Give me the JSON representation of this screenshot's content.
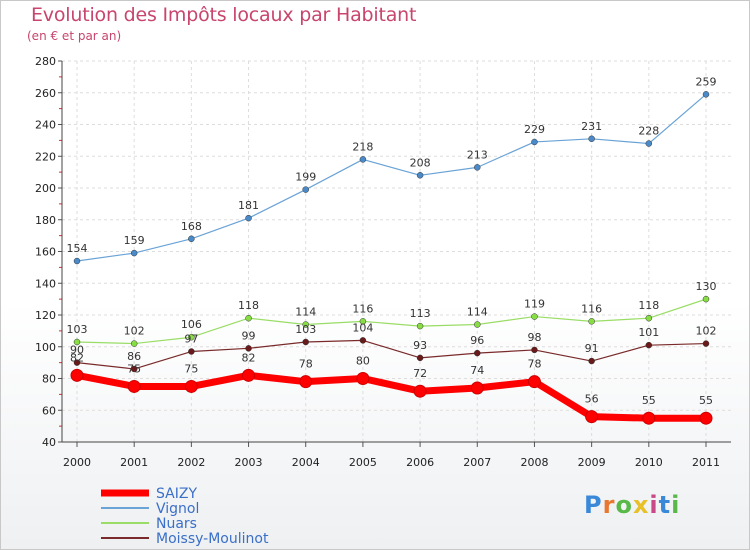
{
  "chart_data": {
    "type": "line",
    "title": "Evolution des Impôts locaux par Habitant",
    "subtitle": "(en € et par an)",
    "x": [
      "2000",
      "2001",
      "2002",
      "2003",
      "2004",
      "2005",
      "2006",
      "2007",
      "2008",
      "2009",
      "2010",
      "2011"
    ],
    "ylim": [
      40,
      280
    ],
    "yticks": [
      40,
      60,
      80,
      100,
      120,
      140,
      160,
      180,
      200,
      220,
      240,
      260,
      280
    ],
    "grid": true,
    "series": [
      {
        "name": "SAIZY",
        "color": "#ff0000",
        "values": [
          82,
          75,
          75,
          82,
          78,
          80,
          72,
          74,
          78,
          56,
          55,
          55
        ]
      },
      {
        "name": "Vignol",
        "color": "#6aa3d6",
        "values": [
          154,
          159,
          168,
          181,
          199,
          218,
          208,
          213,
          229,
          231,
          228,
          259
        ]
      },
      {
        "name": "Nuars",
        "color": "#99dd66",
        "values": [
          103,
          102,
          106,
          118,
          114,
          116,
          113,
          114,
          119,
          116,
          118,
          130
        ]
      },
      {
        "name": "Moissy-Moulinot",
        "color": "#7a2a2a",
        "values": [
          90,
          86,
          97,
          99,
          103,
          104,
          93,
          96,
          98,
          91,
          101,
          102
        ]
      }
    ]
  },
  "logo": {
    "text": "Proxiti"
  }
}
